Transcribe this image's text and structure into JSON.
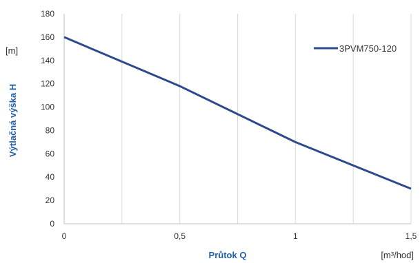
{
  "chart_data": {
    "type": "line",
    "title": "",
    "xlabel": "Průtok Q",
    "ylabel": "Výtlačná výška H",
    "x_unit": "[m³/hod]",
    "y_unit": "[m]",
    "xlim": [
      0,
      1.5
    ],
    "ylim": [
      0,
      180
    ],
    "x_ticks": [
      0,
      0.5,
      1,
      1.5
    ],
    "x_tick_labels": [
      "0",
      "0,5",
      "1",
      "1,5"
    ],
    "y_ticks": [
      0,
      20,
      40,
      60,
      80,
      100,
      120,
      140,
      160,
      180
    ],
    "y_tick_labels": [
      "0",
      "20",
      "40",
      "60",
      "80",
      "100",
      "120",
      "140",
      "160",
      "180"
    ],
    "grid": "vertical",
    "legend_position": "top-right",
    "series": [
      {
        "name": "3PVM750-120",
        "color": "#2e4a8e",
        "x": [
          0,
          0.5,
          1,
          1.5
        ],
        "y": [
          160,
          118,
          70,
          30
        ]
      }
    ]
  }
}
